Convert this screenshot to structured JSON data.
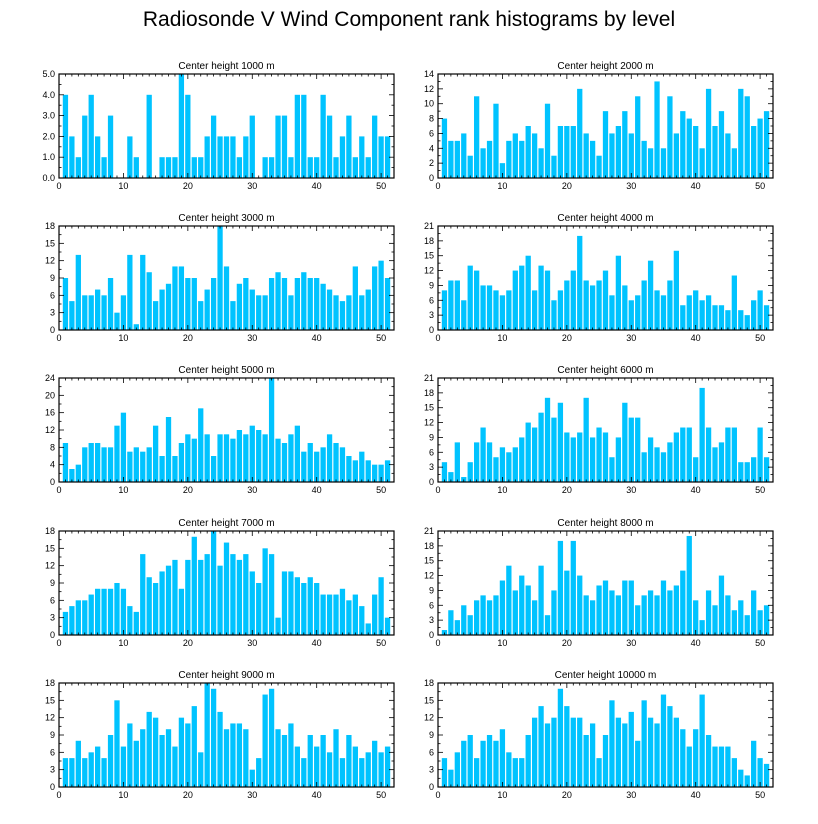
{
  "page_title": "Radiosonde V Wind Component rank histograms by level",
  "colors": {
    "bar": "#00c3ff",
    "axis": "#000000",
    "background": "#ffffff"
  },
  "chart_data": [
    {
      "type": "bar",
      "title": "Center height 1000 m",
      "xlabel": "",
      "ylabel": "",
      "xlim": [
        0,
        52
      ],
      "ylim": [
        0,
        5
      ],
      "xticks": [
        0,
        10,
        20,
        30,
        40,
        50
      ],
      "yticks": [
        0,
        1,
        2,
        3,
        4,
        5
      ],
      "ytick_labels": [
        "0.0",
        "1.0",
        "2.0",
        "3.0",
        "4.0",
        "5.0"
      ],
      "categories": [
        1,
        2,
        3,
        4,
        5,
        6,
        7,
        8,
        9,
        10,
        11,
        12,
        13,
        14,
        15,
        16,
        17,
        18,
        19,
        20,
        21,
        22,
        23,
        24,
        25,
        26,
        27,
        28,
        29,
        30,
        31,
        32,
        33,
        34,
        35,
        36,
        37,
        38,
        39,
        40,
        41,
        42,
        43,
        44,
        45,
        46,
        47,
        48,
        49,
        50,
        51
      ],
      "values": [
        4,
        2,
        1,
        3,
        4,
        2,
        1,
        3,
        0,
        0,
        2,
        1,
        0,
        4,
        0,
        1,
        1,
        1,
        5,
        4,
        1,
        1,
        2,
        3,
        2,
        2,
        2,
        1,
        2,
        3,
        0,
        1,
        1,
        3,
        3,
        1,
        4,
        4,
        1,
        1,
        4,
        3,
        1,
        2,
        3,
        1,
        2,
        1,
        3,
        2,
        2
      ]
    },
    {
      "type": "bar",
      "title": "Center height 2000 m",
      "xlabel": "",
      "ylabel": "",
      "xlim": [
        0,
        52
      ],
      "ylim": [
        0,
        14
      ],
      "xticks": [
        0,
        10,
        20,
        30,
        40,
        50
      ],
      "yticks": [
        0,
        2,
        4,
        6,
        8,
        10,
        12,
        14
      ],
      "ytick_labels": [
        "0",
        "2",
        "4",
        "6",
        "8",
        "10",
        "12",
        "14"
      ],
      "categories": [
        1,
        2,
        3,
        4,
        5,
        6,
        7,
        8,
        9,
        10,
        11,
        12,
        13,
        14,
        15,
        16,
        17,
        18,
        19,
        20,
        21,
        22,
        23,
        24,
        25,
        26,
        27,
        28,
        29,
        30,
        31,
        32,
        33,
        34,
        35,
        36,
        37,
        38,
        39,
        40,
        41,
        42,
        43,
        44,
        45,
        46,
        47,
        48,
        49,
        50,
        51
      ],
      "values": [
        8,
        5,
        5,
        6,
        3,
        11,
        4,
        5,
        10,
        2,
        5,
        6,
        5,
        7,
        6,
        4,
        10,
        3,
        7,
        7,
        7,
        12,
        6,
        5,
        3,
        9,
        6,
        7,
        9,
        6,
        11,
        5,
        4,
        13,
        4,
        11,
        6,
        9,
        8,
        7,
        4,
        12,
        7,
        9,
        6,
        4,
        12,
        11,
        7,
        8,
        9
      ]
    },
    {
      "type": "bar",
      "title": "Center height 3000 m",
      "xlabel": "",
      "ylabel": "",
      "xlim": [
        0,
        52
      ],
      "ylim": [
        0,
        18
      ],
      "xticks": [
        0,
        10,
        20,
        30,
        40,
        50
      ],
      "yticks": [
        0,
        3,
        6,
        9,
        12,
        15,
        18
      ],
      "ytick_labels": [
        "0",
        "3",
        "6",
        "9",
        "12",
        "15",
        "18"
      ],
      "categories": [
        1,
        2,
        3,
        4,
        5,
        6,
        7,
        8,
        9,
        10,
        11,
        12,
        13,
        14,
        15,
        16,
        17,
        18,
        19,
        20,
        21,
        22,
        23,
        24,
        25,
        26,
        27,
        28,
        29,
        30,
        31,
        32,
        33,
        34,
        35,
        36,
        37,
        38,
        39,
        40,
        41,
        42,
        43,
        44,
        45,
        46,
        47,
        48,
        49,
        50,
        51
      ],
      "values": [
        9,
        5,
        13,
        6,
        6,
        7,
        6,
        9,
        3,
        6,
        13,
        1,
        13,
        10,
        5,
        7,
        8,
        11,
        11,
        9,
        9,
        5,
        7,
        9,
        18,
        11,
        5,
        8,
        9,
        7,
        6,
        6,
        9,
        10,
        9,
        6,
        9,
        10,
        9,
        9,
        8,
        7,
        6,
        5,
        6,
        11,
        6,
        7,
        11,
        12,
        9
      ]
    },
    {
      "type": "bar",
      "title": "Center height 4000 m",
      "xlabel": "",
      "ylabel": "",
      "xlim": [
        0,
        52
      ],
      "ylim": [
        0,
        21
      ],
      "xticks": [
        0,
        10,
        20,
        30,
        40,
        50
      ],
      "yticks": [
        0,
        3,
        6,
        9,
        12,
        15,
        18,
        21
      ],
      "ytick_labels": [
        "0",
        "3",
        "6",
        "9",
        "12",
        "15",
        "18",
        "21"
      ],
      "categories": [
        1,
        2,
        3,
        4,
        5,
        6,
        7,
        8,
        9,
        10,
        11,
        12,
        13,
        14,
        15,
        16,
        17,
        18,
        19,
        20,
        21,
        22,
        23,
        24,
        25,
        26,
        27,
        28,
        29,
        30,
        31,
        32,
        33,
        34,
        35,
        36,
        37,
        38,
        39,
        40,
        41,
        42,
        43,
        44,
        45,
        46,
        47,
        48,
        49,
        50,
        51
      ],
      "values": [
        8,
        10,
        10,
        6,
        13,
        12,
        9,
        9,
        8,
        7,
        8,
        12,
        13,
        15,
        8,
        13,
        12,
        6,
        8,
        10,
        12,
        19,
        10,
        9,
        10,
        12,
        7,
        15,
        9,
        6,
        7,
        10,
        14,
        8,
        7,
        10,
        16,
        5,
        7,
        8,
        6,
        7,
        5,
        5,
        4,
        11,
        4,
        3,
        6,
        8,
        5
      ]
    },
    {
      "type": "bar",
      "title": "Center height 5000 m",
      "xlabel": "",
      "ylabel": "",
      "xlim": [
        0,
        52
      ],
      "ylim": [
        0,
        24
      ],
      "xticks": [
        0,
        10,
        20,
        30,
        40,
        50
      ],
      "yticks": [
        0,
        4,
        8,
        12,
        16,
        20,
        24
      ],
      "ytick_labels": [
        "0",
        "4",
        "8",
        "12",
        "16",
        "20",
        "24"
      ],
      "categories": [
        1,
        2,
        3,
        4,
        5,
        6,
        7,
        8,
        9,
        10,
        11,
        12,
        13,
        14,
        15,
        16,
        17,
        18,
        19,
        20,
        21,
        22,
        23,
        24,
        25,
        26,
        27,
        28,
        29,
        30,
        31,
        32,
        33,
        34,
        35,
        36,
        37,
        38,
        39,
        40,
        41,
        42,
        43,
        44,
        45,
        46,
        47,
        48,
        49,
        50,
        51
      ],
      "values": [
        9,
        3,
        4,
        8,
        9,
        9,
        8,
        8,
        13,
        16,
        7,
        8,
        7,
        8,
        13,
        6,
        15,
        6,
        9,
        11,
        10,
        17,
        11,
        6,
        11,
        11,
        10,
        12,
        11,
        13,
        12,
        11,
        24,
        10,
        9,
        11,
        13,
        7,
        9,
        7,
        8,
        11,
        9,
        8,
        6,
        5,
        7,
        5,
        4,
        4,
        5
      ]
    },
    {
      "type": "bar",
      "title": "Center height 6000 m",
      "xlabel": "",
      "ylabel": "",
      "xlim": [
        0,
        52
      ],
      "ylim": [
        0,
        21
      ],
      "xticks": [
        0,
        10,
        20,
        30,
        40,
        50
      ],
      "yticks": [
        0,
        3,
        6,
        9,
        12,
        15,
        18,
        21
      ],
      "ytick_labels": [
        "0",
        "3",
        "6",
        "9",
        "12",
        "15",
        "18",
        "21"
      ],
      "categories": [
        1,
        2,
        3,
        4,
        5,
        6,
        7,
        8,
        9,
        10,
        11,
        12,
        13,
        14,
        15,
        16,
        17,
        18,
        19,
        20,
        21,
        22,
        23,
        24,
        25,
        26,
        27,
        28,
        29,
        30,
        31,
        32,
        33,
        34,
        35,
        36,
        37,
        38,
        39,
        40,
        41,
        42,
        43,
        44,
        45,
        46,
        47,
        48,
        49,
        50,
        51
      ],
      "values": [
        4,
        2,
        8,
        1,
        4,
        8,
        11,
        8,
        5,
        7,
        6,
        7,
        9,
        12,
        11,
        14,
        17,
        13,
        16,
        10,
        9,
        10,
        17,
        9,
        11,
        10,
        5,
        9,
        16,
        13,
        13,
        6,
        9,
        7,
        6,
        8,
        10,
        11,
        11,
        5,
        19,
        11,
        7,
        8,
        11,
        11,
        4,
        4,
        5,
        11,
        5
      ]
    },
    {
      "type": "bar",
      "title": "Center height 7000 m",
      "xlabel": "",
      "ylabel": "",
      "xlim": [
        0,
        52
      ],
      "ylim": [
        0,
        18
      ],
      "xticks": [
        0,
        10,
        20,
        30,
        40,
        50
      ],
      "yticks": [
        0,
        3,
        6,
        9,
        12,
        15,
        18
      ],
      "ytick_labels": [
        "0",
        "3",
        "6",
        "9",
        "12",
        "15",
        "18"
      ],
      "categories": [
        1,
        2,
        3,
        4,
        5,
        6,
        7,
        8,
        9,
        10,
        11,
        12,
        13,
        14,
        15,
        16,
        17,
        18,
        19,
        20,
        21,
        22,
        23,
        24,
        25,
        26,
        27,
        28,
        29,
        30,
        31,
        32,
        33,
        34,
        35,
        36,
        37,
        38,
        39,
        40,
        41,
        42,
        43,
        44,
        45,
        46,
        47,
        48,
        49,
        50,
        51
      ],
      "values": [
        4,
        5,
        6,
        6,
        7,
        8,
        8,
        8,
        9,
        8,
        5,
        4,
        14,
        10,
        9,
        11,
        12,
        13,
        8,
        13,
        17,
        13,
        14,
        18,
        12,
        16,
        14,
        13,
        14,
        11,
        9,
        15,
        14,
        3,
        11,
        11,
        10,
        9,
        10,
        9,
        7,
        7,
        7,
        8,
        6,
        7,
        5,
        2,
        7,
        10,
        3
      ]
    },
    {
      "type": "bar",
      "title": "Center height 8000 m",
      "xlabel": "",
      "ylabel": "",
      "xlim": [
        0,
        52
      ],
      "ylim": [
        0,
        21
      ],
      "xticks": [
        0,
        10,
        20,
        30,
        40,
        50
      ],
      "yticks": [
        0,
        3,
        6,
        9,
        12,
        15,
        18,
        21
      ],
      "ytick_labels": [
        "0",
        "3",
        "6",
        "9",
        "12",
        "15",
        "18",
        "21"
      ],
      "categories": [
        1,
        2,
        3,
        4,
        5,
        6,
        7,
        8,
        9,
        10,
        11,
        12,
        13,
        14,
        15,
        16,
        17,
        18,
        19,
        20,
        21,
        22,
        23,
        24,
        25,
        26,
        27,
        28,
        29,
        30,
        31,
        32,
        33,
        34,
        35,
        36,
        37,
        38,
        39,
        40,
        41,
        42,
        43,
        44,
        45,
        46,
        47,
        48,
        49,
        50,
        51
      ],
      "values": [
        1,
        5,
        3,
        6,
        4,
        7,
        8,
        7,
        8,
        11,
        14,
        9,
        12,
        10,
        7,
        14,
        4,
        9,
        19,
        13,
        19,
        12,
        8,
        7,
        10,
        11,
        9,
        8,
        11,
        11,
        6,
        8,
        9,
        8,
        11,
        9,
        10,
        13,
        20,
        7,
        3,
        9,
        6,
        12,
        8,
        5,
        7,
        4,
        9,
        5,
        6
      ]
    },
    {
      "type": "bar",
      "title": "Center height 9000 m",
      "xlabel": "",
      "ylabel": "",
      "xlim": [
        0,
        52
      ],
      "ylim": [
        0,
        18
      ],
      "xticks": [
        0,
        10,
        20,
        30,
        40,
        50
      ],
      "yticks": [
        0,
        3,
        6,
        9,
        12,
        15,
        18
      ],
      "ytick_labels": [
        "0",
        "3",
        "6",
        "9",
        "12",
        "15",
        "18"
      ],
      "categories": [
        1,
        2,
        3,
        4,
        5,
        6,
        7,
        8,
        9,
        10,
        11,
        12,
        13,
        14,
        15,
        16,
        17,
        18,
        19,
        20,
        21,
        22,
        23,
        24,
        25,
        26,
        27,
        28,
        29,
        30,
        31,
        32,
        33,
        34,
        35,
        36,
        37,
        38,
        39,
        40,
        41,
        42,
        43,
        44,
        45,
        46,
        47,
        48,
        49,
        50,
        51
      ],
      "values": [
        5,
        5,
        8,
        5,
        6,
        7,
        5,
        9,
        15,
        7,
        11,
        8,
        10,
        13,
        12,
        9,
        10,
        7,
        12,
        11,
        14,
        6,
        18,
        17,
        13,
        10,
        11,
        11,
        10,
        3,
        5,
        16,
        17,
        10,
        9,
        11,
        7,
        5,
        9,
        7,
        9,
        6,
        10,
        5,
        9,
        7,
        5,
        6,
        8,
        6,
        7
      ]
    },
    {
      "type": "bar",
      "title": "Center height 10000 m",
      "xlabel": "",
      "ylabel": "",
      "xlim": [
        0,
        52
      ],
      "ylim": [
        0,
        18
      ],
      "xticks": [
        0,
        10,
        20,
        30,
        40,
        50
      ],
      "yticks": [
        0,
        3,
        6,
        9,
        12,
        15,
        18
      ],
      "ytick_labels": [
        "0",
        "3",
        "6",
        "9",
        "12",
        "15",
        "18"
      ],
      "categories": [
        1,
        2,
        3,
        4,
        5,
        6,
        7,
        8,
        9,
        10,
        11,
        12,
        13,
        14,
        15,
        16,
        17,
        18,
        19,
        20,
        21,
        22,
        23,
        24,
        25,
        26,
        27,
        28,
        29,
        30,
        31,
        32,
        33,
        34,
        35,
        36,
        37,
        38,
        39,
        40,
        41,
        42,
        43,
        44,
        45,
        46,
        47,
        48,
        49,
        50,
        51
      ],
      "values": [
        5,
        3,
        6,
        8,
        9,
        5,
        8,
        9,
        8,
        10,
        6,
        5,
        5,
        9,
        12,
        14,
        11,
        12,
        17,
        14,
        12,
        12,
        9,
        11,
        5,
        9,
        15,
        12,
        11,
        13,
        8,
        15,
        12,
        11,
        16,
        14,
        12,
        10,
        7,
        10,
        16,
        9,
        7,
        7,
        7,
        5,
        3,
        2,
        8,
        5,
        4
      ]
    }
  ]
}
